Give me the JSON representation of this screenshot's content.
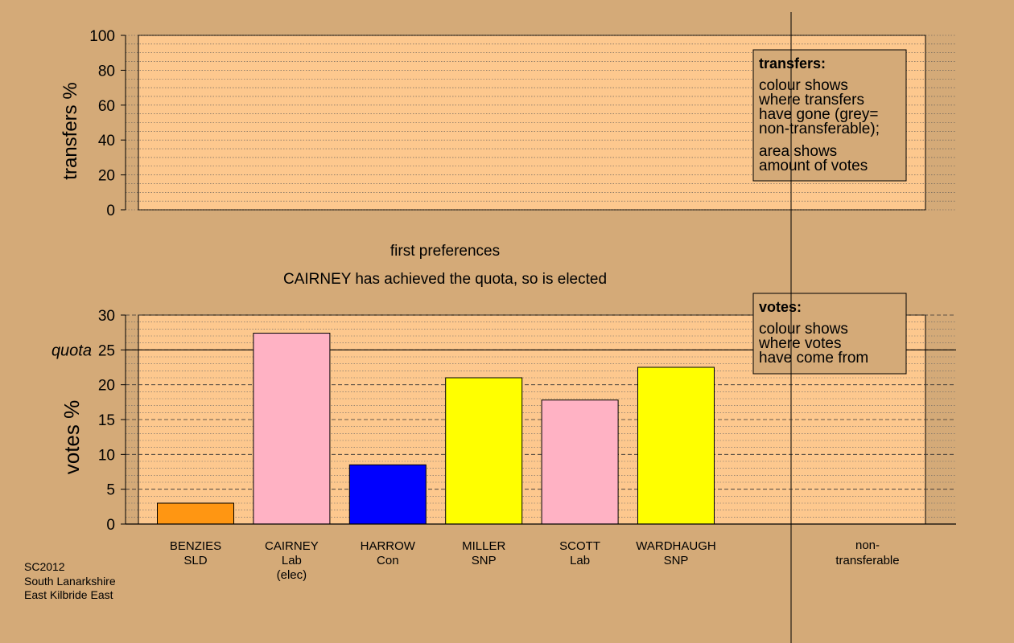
{
  "colors": {
    "background": "#d4aa78",
    "plot_fill": "#fdc88e",
    "axis": "#000000",
    "party": {
      "SLD": "#ff9612",
      "Lab": "#ffb2c4",
      "Con": "#0000ff",
      "SNP": "#ffff00"
    }
  },
  "top_chart": {
    "ylabel": "transfers %",
    "ylim": [
      0,
      100
    ],
    "ticks": [
      "0",
      "20",
      "40",
      "60",
      "80",
      "100"
    ],
    "legend": {
      "title": "transfers:",
      "lines": [
        "colour shows",
        "where transfers",
        "have gone (grey=",
        "non-transferable);"
      ],
      "lines2": [
        "area shows",
        "amount of votes"
      ]
    }
  },
  "stage_title": "first preferences",
  "stage_note": "CAIRNEY has achieved the quota, so is elected",
  "chart_data": {
    "type": "bar",
    "categories": [
      "BENZIES",
      "CAIRNEY",
      "HARROW",
      "MILLER",
      "SCOTT",
      "WARDHAUGH"
    ],
    "parties": [
      "SLD",
      "Lab",
      "Con",
      "SNP",
      "Lab",
      "SNP"
    ],
    "notes": [
      "",
      "(elec)",
      "",
      "",
      "",
      ""
    ],
    "values": [
      3.0,
      27.4,
      8.5,
      21.0,
      17.8,
      22.5
    ],
    "ylabel": "votes %",
    "ylim": [
      0,
      30
    ],
    "ticks": [
      "0",
      "5",
      "10",
      "15",
      "20",
      "25",
      "30"
    ],
    "quota": 25,
    "quota_label": "quota",
    "extra_category": [
      "non-",
      "transferable"
    ],
    "legend": {
      "title": "votes:",
      "lines": [
        "colour shows",
        "where votes",
        "have come from"
      ]
    }
  },
  "footer": {
    "lines": [
      "SC2012",
      "South Lanarkshire",
      "East Kilbride East"
    ]
  }
}
